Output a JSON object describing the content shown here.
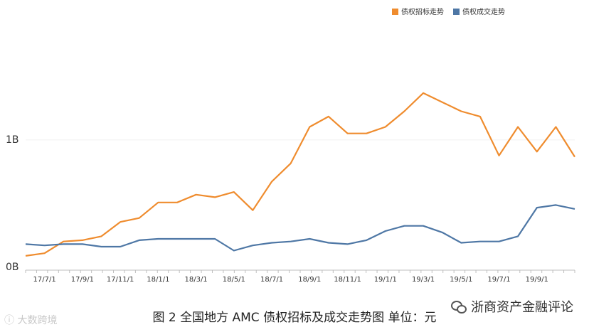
{
  "chart_data": {
    "type": "line",
    "title": "",
    "xlabel": "",
    "ylabel": "",
    "ylim": [
      0,
      2.02
    ],
    "y_ticks": [
      {
        "value": 0,
        "label": "0B"
      },
      {
        "value": 1,
        "label": "1B"
      }
    ],
    "x_tick_labels": [
      "17/7/1",
      "17/9/1",
      "17/11/1",
      "18/1/1",
      "18/3/1",
      "18/5/1",
      "18/7/1",
      "18/9/1",
      "18/11/1",
      "19/1/1",
      "19/3/1",
      "19/5/1",
      "19/7/1",
      "19/9/1"
    ],
    "x": [
      "2017-06",
      "2017-07",
      "2017-08",
      "2017-09",
      "2017-10",
      "2017-11",
      "2017-12",
      "2018-01",
      "2018-02",
      "2018-03",
      "2018-04",
      "2018-05",
      "2018-06",
      "2018-07",
      "2018-08",
      "2018-09",
      "2018-10",
      "2018-11",
      "2018-12",
      "2019-01",
      "2019-02",
      "2019-03",
      "2019-04",
      "2019-05",
      "2019-06",
      "2019-07",
      "2019-08",
      "2019-09",
      "2019-10",
      "2019-11"
    ],
    "grid": false,
    "legend_position": "top-right",
    "series": [
      {
        "name": "债权招标走势",
        "color": "#ef8c2e",
        "values": [
          0.11,
          0.13,
          0.22,
          0.23,
          0.26,
          0.37,
          0.4,
          0.52,
          0.52,
          0.58,
          0.56,
          0.6,
          0.46,
          0.68,
          0.82,
          1.1,
          1.18,
          1.05,
          1.05,
          1.1,
          1.22,
          1.36,
          1.29,
          1.22,
          1.18,
          0.88,
          1.1,
          0.91,
          1.1,
          0.87
        ]
      },
      {
        "name": "债权成交走势",
        "color": "#4e77a5",
        "values": [
          0.2,
          0.19,
          0.2,
          0.2,
          0.18,
          0.18,
          0.23,
          0.24,
          0.24,
          0.24,
          0.24,
          0.15,
          0.19,
          0.21,
          0.22,
          0.24,
          0.21,
          0.2,
          0.23,
          0.3,
          0.34,
          0.34,
          0.29,
          0.21,
          0.22,
          0.22,
          0.26,
          0.48,
          0.5,
          0.47
        ]
      }
    ]
  },
  "caption": "图 2 全国地方 AMC 债权招标及成交走势图 单位：元",
  "watermark_left": "大数跨境",
  "watermark_right": "浙商资产金融评论"
}
